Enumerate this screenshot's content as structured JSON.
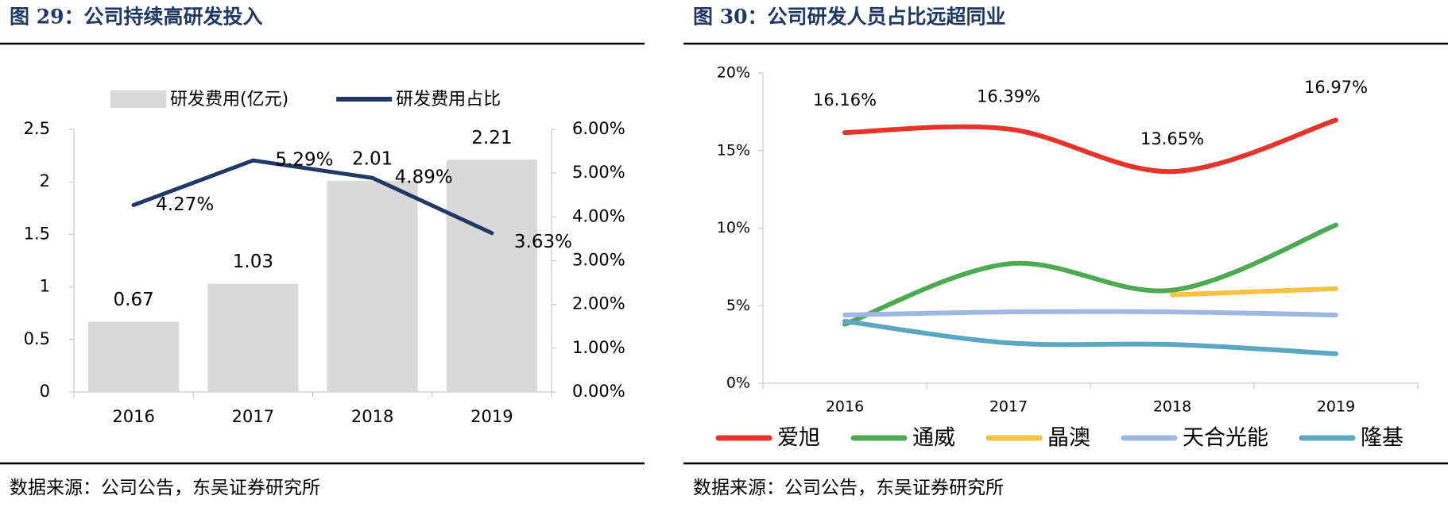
{
  "chart_data": [
    {
      "type": "bar",
      "title": "图 29：公司持续高研发投入",
      "source": "数据来源：公司公告，东吴证券研究所",
      "categories": [
        "2016",
        "2017",
        "2018",
        "2019"
      ],
      "series": [
        {
          "name": "研发费用(亿元)",
          "color": "#d9d9d9",
          "values": [
            0.67,
            1.03,
            2.01,
            2.21
          ]
        },
        {
          "name": "研发费用占比",
          "color": "#203864",
          "type": "line",
          "axis": "y2",
          "values": [
            4.27,
            5.29,
            4.89,
            3.63
          ],
          "value_labels": [
            "4.27%",
            "5.29%",
            "4.89%",
            "3.63%"
          ]
        }
      ],
      "ylim": [
        0,
        2.5
      ],
      "yticks": [
        0,
        0.5,
        1,
        1.5,
        2,
        2.5
      ],
      "y2lim": [
        0,
        6
      ],
      "y2ticks": [
        {
          "value": 0,
          "label": "0.00%"
        },
        {
          "value": 1,
          "label": "1.00%"
        },
        {
          "value": 2,
          "label": "2.00%"
        },
        {
          "value": 3,
          "label": "3.00%"
        },
        {
          "value": 4,
          "label": "4.00%"
        },
        {
          "value": 5,
          "label": "5.00%"
        },
        {
          "value": 6,
          "label": "6.00%"
        }
      ],
      "grid": false,
      "legend": "top"
    },
    {
      "type": "line",
      "title": "图 30：公司研发人员占比远超同业",
      "source": "数据来源：公司公告，东吴证券研究所",
      "categories": [
        "2016",
        "2017",
        "2018",
        "2019"
      ],
      "smooth": true,
      "series": [
        {
          "name": "爱旭",
          "color": "#e8332a",
          "values": [
            16.16,
            16.39,
            13.65,
            16.97
          ],
          "value_labels": [
            "16.16%",
            "16.39%",
            "13.65%",
            "16.97%"
          ]
        },
        {
          "name": "通威",
          "color": "#4eaa52",
          "values": [
            3.8,
            7.7,
            6.0,
            10.2
          ]
        },
        {
          "name": "晶澳",
          "color": "#f5c242",
          "values": [
            null,
            null,
            5.7,
            6.1
          ]
        },
        {
          "name": "天合光能",
          "color": "#9fb8e0",
          "values": [
            4.4,
            4.6,
            4.6,
            4.4
          ]
        },
        {
          "name": "隆基",
          "color": "#5aa7c1",
          "values": [
            4.0,
            2.6,
            2.5,
            1.9
          ]
        }
      ],
      "ylim": [
        0,
        20
      ],
      "yticks": [
        {
          "value": 0,
          "label": "0%"
        },
        {
          "value": 5,
          "label": "5%"
        },
        {
          "value": 10,
          "label": "10%"
        },
        {
          "value": 15,
          "label": "15%"
        },
        {
          "value": 20,
          "label": "20%"
        }
      ],
      "grid": false,
      "legend": "bottom"
    }
  ]
}
